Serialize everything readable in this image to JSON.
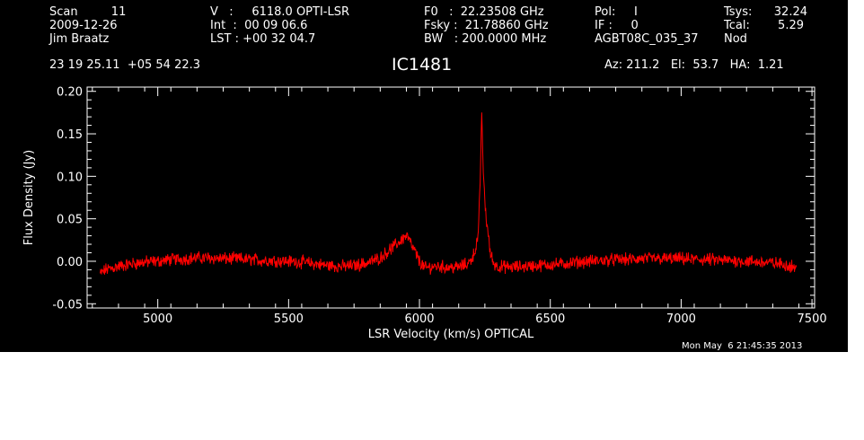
{
  "header": {
    "col1": [
      "Scan         11",
      "2009-12-26",
      "Jim Braatz"
    ],
    "col2": [
      "V   :     6118.0 OPTI-LSR",
      "Int  :  00 09 06.6",
      "LST : +00 32 04.7"
    ],
    "col3": [
      "F0   :  22.23508 GHz",
      "Fsky :  21.78860 GHz",
      "BW   : 200.0000 MHz"
    ],
    "col4": [
      "Pol:     I",
      "IF :     0",
      "AGBT08C_035_37"
    ],
    "col5": [
      "Tsys:",
      "Tcal:",
      "Nod"
    ],
    "col5_values": [
      "32.24",
      "5.29"
    ],
    "coords": "23 19 25.11  +05 54 22.3",
    "source": "IC1481",
    "azelha": "Az: 211.2   El:  53.7   HA:  1.21"
  },
  "footer": {
    "timestamp": "Mon May  6 21:45:35 2013"
  },
  "colors": {
    "background": "#000000",
    "foreground": "#ffffff",
    "trace": "#ff0000"
  },
  "chart_data": {
    "type": "line",
    "xlabel": "LSR Velocity (km/s) OPTICAL",
    "ylabel": "Flux Density (Jy)",
    "xlim": [
      4730,
      7510
    ],
    "ylim": [
      -0.055,
      0.205
    ],
    "xticks": [
      5000,
      5500,
      6000,
      6500,
      7000,
      7500
    ],
    "xtick_labels": [
      "5000",
      "5500",
      "6000",
      "6500",
      "7000",
      "7500"
    ],
    "yticks": [
      -0.05,
      0.0,
      0.05,
      0.1,
      0.15,
      0.2
    ],
    "ytick_labels": [
      "-0.05",
      "0.00",
      "0.05",
      "0.10",
      "0.15",
      "0.20"
    ],
    "series": [
      {
        "color": "#ff0000",
        "x": [
          4780,
          4800,
          4850,
          4900,
          4950,
          5000,
          5050,
          5100,
          5150,
          5200,
          5250,
          5300,
          5350,
          5400,
          5450,
          5500,
          5550,
          5600,
          5650,
          5700,
          5750,
          5800,
          5850,
          5880,
          5900,
          5920,
          5940,
          5950,
          5960,
          5970,
          5980,
          6000,
          6020,
          6040,
          6060,
          6080,
          6100,
          6150,
          6190,
          6210,
          6225,
          6232,
          6238,
          6242,
          6248,
          6255,
          6262,
          6270,
          6285,
          6300,
          6350,
          6400,
          6450,
          6500,
          6550,
          6600,
          6650,
          6700,
          6750,
          6800,
          6850,
          6900,
          6950,
          7000,
          7050,
          7100,
          7150,
          7200,
          7250,
          7300,
          7350,
          7400,
          7440
        ],
        "y": [
          -0.015,
          -0.01,
          -0.006,
          -0.003,
          -0.001,
          0.0,
          0.002,
          0.003,
          0.004,
          0.004,
          0.003,
          0.003,
          0.002,
          0.001,
          0.001,
          0.0,
          -0.001,
          -0.003,
          -0.005,
          -0.006,
          -0.005,
          -0.002,
          0.004,
          0.012,
          0.017,
          0.022,
          0.028,
          0.03,
          0.026,
          0.018,
          0.013,
          0.0,
          -0.008,
          -0.007,
          -0.006,
          -0.006,
          -0.007,
          -0.007,
          -0.002,
          0.01,
          0.03,
          0.095,
          0.18,
          0.12,
          0.08,
          0.05,
          0.035,
          0.01,
          -0.003,
          -0.006,
          -0.007,
          -0.006,
          -0.005,
          -0.004,
          -0.003,
          -0.001,
          0.0,
          0.001,
          0.002,
          0.002,
          0.003,
          0.003,
          0.003,
          0.003,
          0.002,
          0.002,
          0.001,
          0.001,
          0.0,
          -0.001,
          -0.002,
          -0.004,
          -0.007
        ]
      }
    ],
    "grid": false,
    "legend": "none"
  }
}
